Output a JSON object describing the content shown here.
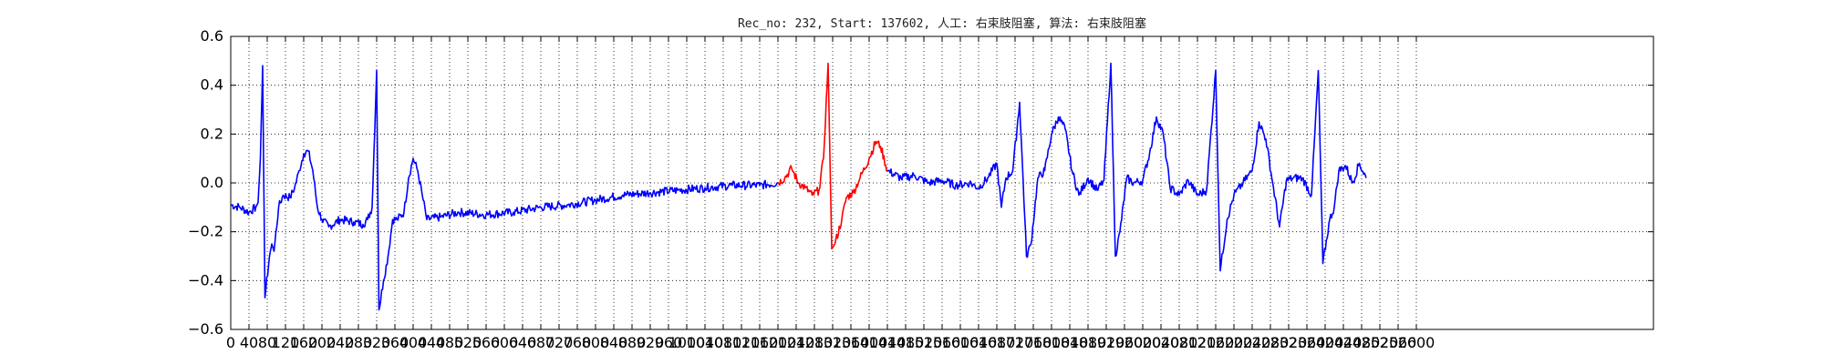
{
  "chart_data": {
    "type": "line",
    "title": "Rec_no: 232, Start: 137602, 人工: 右束肢阻塞, 算法: 右束肢阻塞",
    "xlabel": "",
    "ylabel": "",
    "xlim": [
      0,
      3120
    ],
    "ylim": [
      -0.6,
      0.6
    ],
    "grid": true,
    "x_tick_labels": [
      "0",
      "40",
      "80",
      "120",
      "160",
      "200",
      "240",
      "280",
      "320",
      "360",
      "400",
      "440",
      "480",
      "520",
      "560",
      "600",
      "640",
      "680",
      "720",
      "760",
      "800",
      "840",
      "880",
      "920",
      "960",
      "1000",
      "1040",
      "1080",
      "1120",
      "1160",
      "1200",
      "1240",
      "1280",
      "1320",
      "1360",
      "1400",
      "1440",
      "1480",
      "1520",
      "1560",
      "1600",
      "1640",
      "1680",
      "1720",
      "1760",
      "1800",
      "1840",
      "1880",
      "1920",
      "1960",
      "2000",
      "2040",
      "2080",
      "2120",
      "2160",
      "2200",
      "2240",
      "2280",
      "2320",
      "2360",
      "2400",
      "2440",
      "2480",
      "2520",
      "2560",
      "2600"
    ],
    "y_tick_labels": [
      "0.6",
      "0.4",
      "0.2",
      "0.0",
      "−0.2",
      "−0.4",
      "−0.6"
    ],
    "series": [
      {
        "color": "#0000ff",
        "points": [
          [
            0,
            -0.09
          ],
          [
            20,
            -0.1
          ],
          [
            40,
            -0.12
          ],
          [
            55,
            -0.1
          ],
          [
            60,
            -0.08
          ],
          [
            65,
            0.1
          ],
          [
            70,
            0.48
          ],
          [
            75,
            -0.47
          ],
          [
            85,
            -0.3
          ],
          [
            90,
            -0.25
          ],
          [
            95,
            -0.28
          ],
          [
            105,
            -0.1
          ],
          [
            115,
            -0.05
          ],
          [
            130,
            -0.06
          ],
          [
            140,
            -0.02
          ],
          [
            150,
            0.05
          ],
          [
            160,
            0.12
          ],
          [
            170,
            0.13
          ],
          [
            180,
            0.05
          ],
          [
            190,
            -0.1
          ],
          [
            200,
            -0.15
          ],
          [
            215,
            -0.18
          ],
          [
            240,
            -0.15
          ],
          [
            270,
            -0.16
          ],
          [
            290,
            -0.17
          ],
          [
            300,
            -0.15
          ],
          [
            310,
            -0.1
          ],
          [
            320,
            0.46
          ],
          [
            325,
            -0.52
          ],
          [
            335,
            -0.4
          ],
          [
            345,
            -0.3
          ],
          [
            355,
            -0.15
          ],
          [
            365,
            -0.15
          ],
          [
            380,
            -0.12
          ],
          [
            390,
            0.02
          ],
          [
            400,
            0.1
          ],
          [
            410,
            0.05
          ],
          [
            420,
            -0.05
          ],
          [
            430,
            -0.15
          ],
          [
            460,
            -0.14
          ],
          [
            500,
            -0.12
          ],
          [
            560,
            -0.13
          ],
          [
            620,
            -0.12
          ],
          [
            680,
            -0.1
          ],
          [
            740,
            -0.09
          ],
          [
            800,
            -0.07
          ],
          [
            860,
            -0.05
          ],
          [
            920,
            -0.04
          ],
          [
            980,
            -0.03
          ],
          [
            1040,
            -0.02
          ],
          [
            1100,
            -0.01
          ],
          [
            1160,
            -0.01
          ],
          [
            1200,
            0.0
          ]
        ]
      },
      {
        "color": "#ff0000",
        "points": [
          [
            1200,
            0.0
          ],
          [
            1215,
            0.02
          ],
          [
            1230,
            0.06
          ],
          [
            1245,
            0.0
          ],
          [
            1260,
            -0.02
          ],
          [
            1275,
            -0.05
          ],
          [
            1290,
            -0.03
          ],
          [
            1300,
            0.1
          ],
          [
            1310,
            0.49
          ],
          [
            1318,
            -0.27
          ],
          [
            1325,
            -0.25
          ],
          [
            1340,
            -0.15
          ],
          [
            1350,
            -0.06
          ],
          [
            1365,
            -0.04
          ],
          [
            1380,
            0.02
          ],
          [
            1400,
            0.1
          ],
          [
            1415,
            0.17
          ],
          [
            1425,
            0.15
          ],
          [
            1440,
            0.05
          ]
        ]
      },
      {
        "color": "#0000ff",
        "points": [
          [
            1440,
            0.05
          ],
          [
            1470,
            0.02
          ],
          [
            1500,
            0.03
          ],
          [
            1530,
            0.0
          ],
          [
            1560,
            0.01
          ],
          [
            1590,
            -0.01
          ],
          [
            1620,
            0.0
          ],
          [
            1640,
            -0.02
          ],
          [
            1660,
            0.02
          ],
          [
            1680,
            0.08
          ],
          [
            1690,
            -0.1
          ],
          [
            1700,
            0.02
          ],
          [
            1715,
            0.05
          ],
          [
            1730,
            0.33
          ],
          [
            1745,
            -0.3
          ],
          [
            1755,
            -0.25
          ],
          [
            1770,
            0.02
          ],
          [
            1785,
            0.05
          ],
          [
            1800,
            0.2
          ],
          [
            1815,
            0.27
          ],
          [
            1830,
            0.22
          ],
          [
            1845,
            0.05
          ],
          [
            1860,
            -0.05
          ],
          [
            1880,
            0.02
          ],
          [
            1900,
            -0.03
          ],
          [
            1915,
            0.01
          ],
          [
            1930,
            0.49
          ],
          [
            1940,
            -0.3
          ],
          [
            1950,
            -0.2
          ],
          [
            1965,
            0.02
          ],
          [
            1980,
            0.0
          ],
          [
            2000,
            0.01
          ],
          [
            2015,
            0.12
          ],
          [
            2030,
            0.27
          ],
          [
            2045,
            0.2
          ],
          [
            2060,
            -0.02
          ],
          [
            2080,
            -0.05
          ],
          [
            2100,
            0.01
          ],
          [
            2120,
            -0.05
          ],
          [
            2140,
            -0.03
          ],
          [
            2160,
            0.46
          ],
          [
            2170,
            -0.36
          ],
          [
            2185,
            -0.15
          ],
          [
            2200,
            -0.05
          ],
          [
            2220,
            0.0
          ],
          [
            2240,
            0.05
          ],
          [
            2255,
            0.25
          ],
          [
            2270,
            0.18
          ],
          [
            2285,
            0.0
          ],
          [
            2300,
            -0.18
          ],
          [
            2315,
            0.01
          ],
          [
            2330,
            0.02
          ],
          [
            2350,
            0.02
          ],
          [
            2370,
            -0.05
          ],
          [
            2385,
            0.46
          ],
          [
            2395,
            -0.33
          ],
          [
            2410,
            -0.15
          ],
          [
            2420,
            -0.1
          ],
          [
            2430,
            0.05
          ],
          [
            2445,
            0.07
          ],
          [
            2460,
            0.0
          ],
          [
            2475,
            0.08
          ],
          [
            2490,
            0.02
          ]
        ]
      }
    ]
  }
}
